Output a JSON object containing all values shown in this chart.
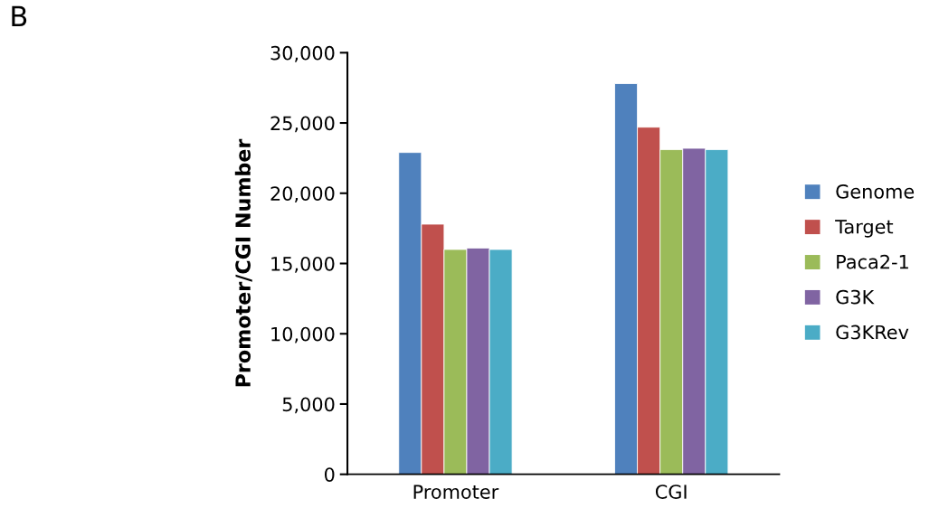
{
  "chart_data": {
    "type": "bar",
    "ylabel": "Promoter/CGI Number",
    "annotations": [
      "B"
    ],
    "categories": [
      "Promoter",
      "CGI"
    ],
    "series": [
      {
        "name": "Genome",
        "color": "#4f81bd",
        "values": [
          22900,
          27800
        ]
      },
      {
        "name": "Target",
        "color": "#c0504d",
        "values": [
          17800,
          24700
        ]
      },
      {
        "name": "Paca2-1",
        "color": "#9bbb59",
        "values": [
          16000,
          23100
        ]
      },
      {
        "name": "G3K",
        "color": "#8064a2",
        "values": [
          16100,
          23200
        ]
      },
      {
        "name": "G3KRev",
        "color": "#4bacc6",
        "values": [
          16000,
          23100
        ]
      }
    ],
    "ylim": [
      0,
      30000
    ],
    "yticks": [
      {
        "value": 0,
        "label": "0"
      },
      {
        "value": 5000,
        "label": "5,000"
      },
      {
        "value": 10000,
        "label": "10,000"
      },
      {
        "value": 15000,
        "label": "15,000"
      },
      {
        "value": 20000,
        "label": "20,000"
      },
      {
        "value": 25000,
        "label": "25,000"
      },
      {
        "value": 30000,
        "label": "30,000"
      }
    ],
    "grid": false,
    "legend": "right"
  }
}
